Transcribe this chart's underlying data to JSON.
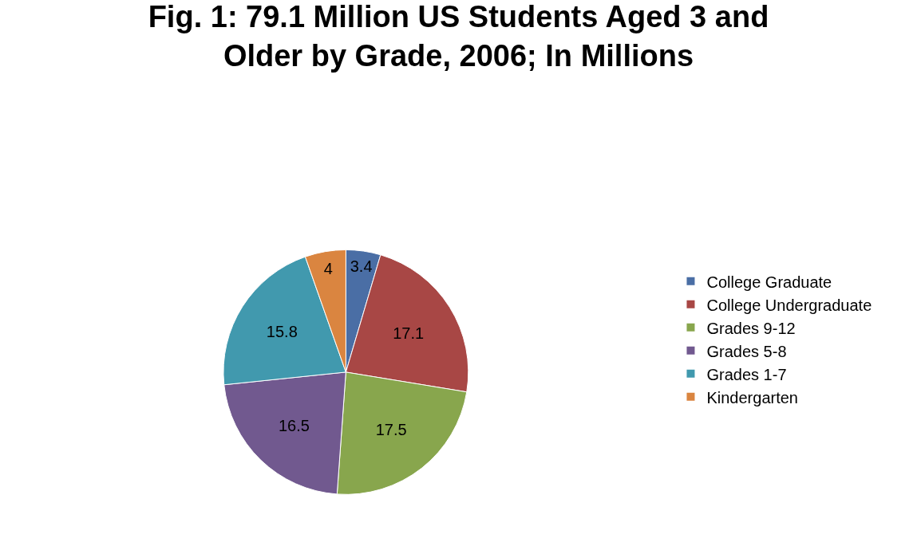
{
  "chart_data": {
    "type": "pie",
    "title": "Fig. 1: 79.1 Million US Students Aged 3 and Older by Grade, 2006; In Millions",
    "categories": [
      "College Graduate",
      "College Undergraduate",
      "Grades 9-12",
      "Grades 5-8",
      "Grades 1-7",
      "Kindergarten"
    ],
    "values": [
      3.4,
      17.1,
      17.5,
      16.5,
      15.8,
      4
    ],
    "colors": [
      "#4a6ea5",
      "#a84745",
      "#88a64d",
      "#71598f",
      "#4199ae",
      "#da8540"
    ],
    "data_labels": true,
    "legend": "right"
  }
}
